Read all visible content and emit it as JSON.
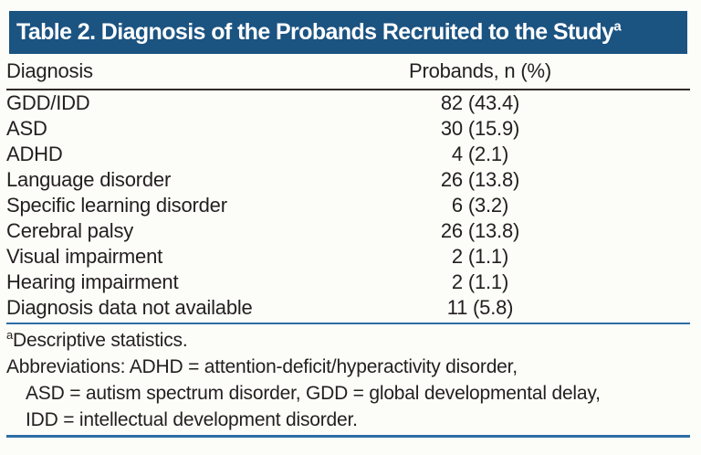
{
  "table": {
    "title": "Table 2. Diagnosis of the Probands Recruited to the Study",
    "title_superscript": "a",
    "columns": {
      "diagnosis": "Diagnosis",
      "probands": "Probands, n (%)"
    },
    "rows": [
      {
        "diagnosis": "GDD/IDD",
        "value": "82 (43.4)"
      },
      {
        "diagnosis": "ASD",
        "value": "30 (15.9)"
      },
      {
        "diagnosis": "ADHD",
        "value": "4 (2.1)"
      },
      {
        "diagnosis": "Language disorder",
        "value": "26 (13.8)"
      },
      {
        "diagnosis": "Specific learning disorder",
        "value": "6 (3.2)"
      },
      {
        "diagnosis": "Cerebral palsy",
        "value": "26 (13.8)"
      },
      {
        "diagnosis": "Visual impairment",
        "value": "2 (1.1)"
      },
      {
        "diagnosis": "Hearing impairment",
        "value": "2 (1.1)"
      },
      {
        "diagnosis": "Diagnosis data not available",
        "value": "11 (5.8)"
      }
    ],
    "footnotes": {
      "marker": "a",
      "descriptive": "Descriptive statistics.",
      "abbr_line1": "Abbreviations: ADHD = attention-deficit/hyperactivity disorder,",
      "abbr_line2": "ASD = autism spectrum disorder, GDD = global developmental delay,",
      "abbr_line3": "IDD = intellectual development disorder."
    },
    "colors": {
      "title_bar_bg": "#1b5381",
      "title_text": "#ffffff",
      "blue_rule": "#2e6da4",
      "dark_rule": "#2f2b28",
      "body_text": "#231f20"
    }
  }
}
